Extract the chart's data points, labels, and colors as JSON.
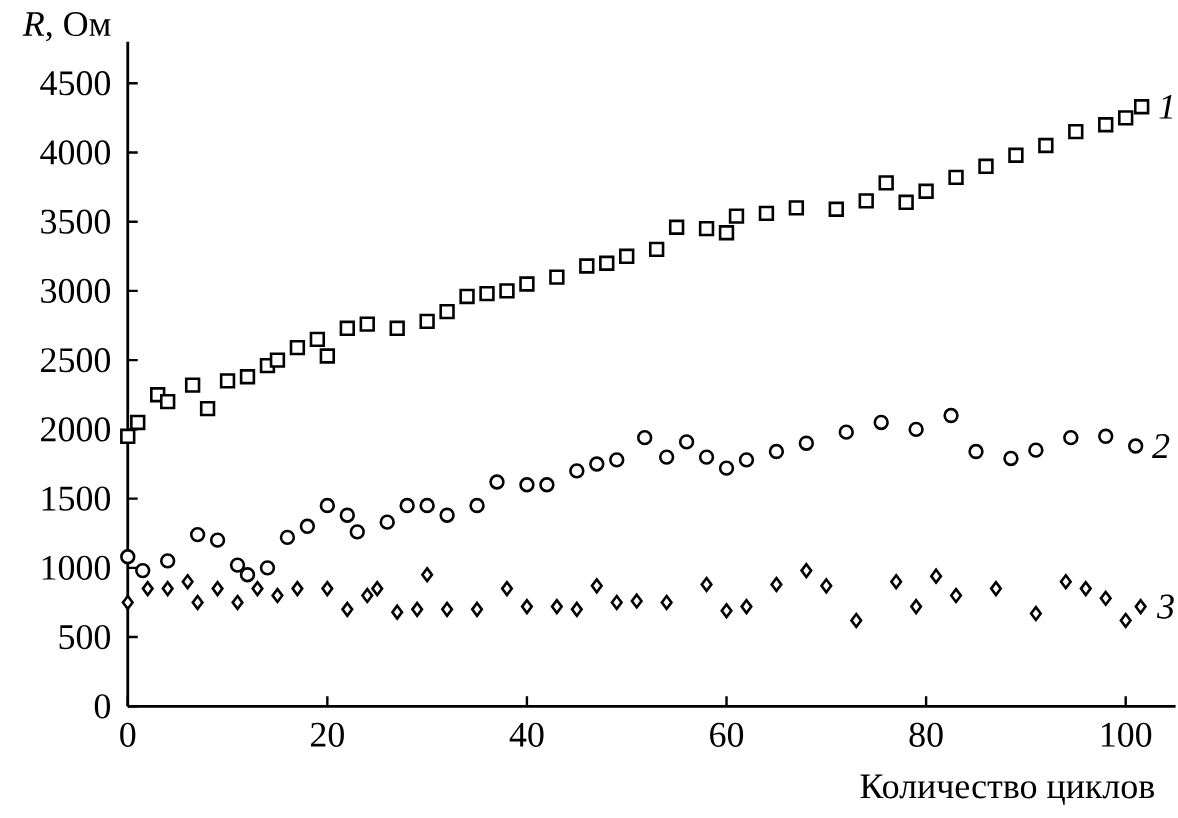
{
  "chart_data": {
    "type": "scatter",
    "xlabel": "Количество циклов",
    "ylabel": "*R*, Ом",
    "xlim": [
      0,
      105
    ],
    "ylim": [
      0,
      4800
    ],
    "xticks": [
      0,
      20,
      40,
      60,
      80,
      100
    ],
    "yticks": [
      0,
      500,
      1000,
      1500,
      2000,
      2500,
      3000,
      3500,
      4000,
      4500
    ],
    "grid": false,
    "legend": false,
    "series": [
      {
        "name": "1",
        "color": "#000000",
        "marker": "square",
        "x": [
          0,
          1,
          3,
          4,
          6.5,
          8,
          10,
          12,
          14,
          15,
          17,
          19,
          20,
          22,
          24,
          27,
          30,
          32,
          34,
          36,
          38,
          40,
          43,
          46,
          48,
          50,
          53,
          55,
          58,
          60,
          61,
          64,
          67,
          71,
          74,
          76,
          78,
          80,
          83,
          86,
          89,
          92,
          95,
          98,
          100,
          101.6
        ],
        "values": [
          1950,
          2050,
          2250,
          2200,
          2320,
          2150,
          2350,
          2380,
          2460,
          2500,
          2590,
          2650,
          2530,
          2730,
          2760,
          2730,
          2780,
          2850,
          2960,
          2980,
          3000,
          3050,
          3100,
          3180,
          3200,
          3250,
          3300,
          3460,
          3450,
          3420,
          3540,
          3560,
          3600,
          3590,
          3650,
          3780,
          3640,
          3720,
          3820,
          3900,
          3980,
          4050,
          4150,
          4200,
          4250,
          4330
        ]
      },
      {
        "name": "2",
        "color": "#000000",
        "marker": "circle",
        "x": [
          0,
          1.5,
          4,
          7,
          9,
          11,
          12,
          14,
          16,
          18,
          20,
          22,
          23,
          26,
          28,
          30,
          32,
          35,
          37,
          40,
          42,
          45,
          47,
          49,
          51.8,
          54,
          56,
          58,
          60,
          62,
          65,
          68,
          72,
          75.5,
          79,
          82.5,
          85,
          88.5,
          91,
          94.5,
          98,
          101
        ],
        "values": [
          1080,
          980,
          1050,
          1240,
          1200,
          1020,
          950,
          1000,
          1220,
          1300,
          1450,
          1380,
          1260,
          1330,
          1450,
          1450,
          1380,
          1450,
          1620,
          1600,
          1600,
          1700,
          1750,
          1780,
          1940,
          1800,
          1910,
          1800,
          1720,
          1780,
          1840,
          1900,
          1980,
          2050,
          2000,
          2100,
          1840,
          1790,
          1850,
          1940,
          1950,
          1880
        ]
      },
      {
        "name": "3",
        "color": "#000000",
        "marker": "diamond",
        "x": [
          0,
          2,
          4,
          6,
          7,
          9,
          11,
          13,
          15,
          17,
          20,
          22,
          24,
          25,
          27,
          29,
          30,
          32,
          35,
          38,
          40,
          43,
          45,
          47,
          49,
          51,
          54,
          58,
          60,
          62,
          65,
          68,
          70,
          73,
          77,
          79,
          81,
          83,
          87,
          91,
          94,
          96,
          98,
          100,
          101.5
        ],
        "values": [
          750,
          850,
          850,
          900,
          750,
          850,
          750,
          850,
          800,
          850,
          850,
          700,
          800,
          850,
          680,
          700,
          950,
          700,
          700,
          850,
          720,
          720,
          700,
          870,
          750,
          760,
          750,
          880,
          690,
          720,
          880,
          980,
          870,
          620,
          900,
          720,
          940,
          800,
          850,
          670,
          900,
          850,
          780,
          620,
          720
        ]
      }
    ]
  }
}
